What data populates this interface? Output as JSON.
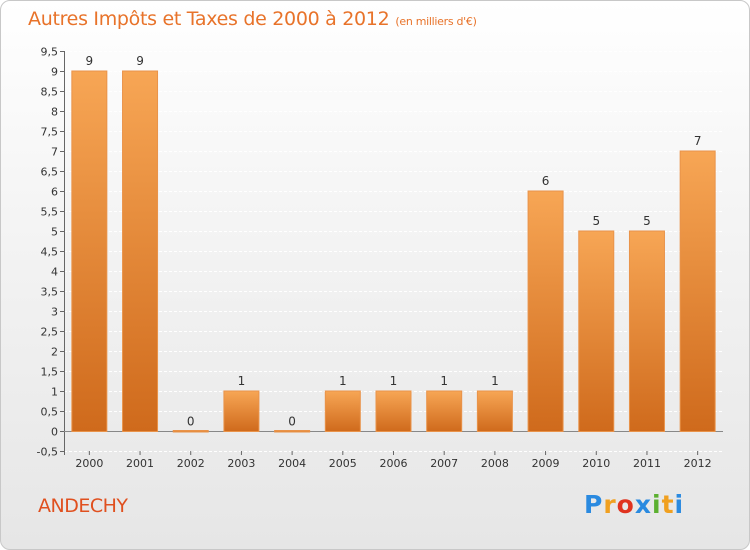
{
  "title": "Autres Impôts et Taxes de 2000 à 2012",
  "unit": "(en milliers d'€)",
  "place_name": "ANDECHY",
  "logo": {
    "letters": [
      "P",
      "r",
      "o",
      "x",
      "i",
      "t",
      "i"
    ],
    "colors": [
      "#2a8ae0",
      "#f0a020",
      "#e0331f",
      "#2a8ae0",
      "#5cb030",
      "#f0a020",
      "#2a8ae0"
    ]
  },
  "colors": {
    "bar_top": "#f7a655",
    "bar_bottom": "#cf6a1c",
    "title": "#e8732a",
    "place": "#e0501f",
    "grid": "#ffffff"
  },
  "chart_data": {
    "type": "bar",
    "categories": [
      "2000",
      "2001",
      "2002",
      "2003",
      "2004",
      "2005",
      "2006",
      "2007",
      "2008",
      "2009",
      "2010",
      "2011",
      "2012"
    ],
    "values": [
      9,
      9,
      0,
      1,
      0,
      1,
      1,
      1,
      1,
      6,
      5,
      5,
      7
    ],
    "data_labels": [
      "9",
      "9",
      "0",
      "1",
      "0",
      "1",
      "1",
      "1",
      "1",
      "6",
      "5",
      "5",
      "7"
    ],
    "ylim": [
      -0.5,
      9.5
    ],
    "yticks": [
      "-0,5",
      "0",
      "0,5",
      "1",
      "1,5",
      "2",
      "2,5",
      "3",
      "3,5",
      "4",
      "4,5",
      "5",
      "5,5",
      "6",
      "6,5",
      "7",
      "7,5",
      "8",
      "8,5",
      "9",
      "9,5"
    ],
    "ytick_values": [
      -0.5,
      0,
      0.5,
      1,
      1.5,
      2,
      2.5,
      3,
      3.5,
      4,
      4.5,
      5,
      5.5,
      6,
      6.5,
      7,
      7.5,
      8,
      8.5,
      9,
      9.5
    ],
    "grid": true,
    "grid_style": "horizontal dashed"
  }
}
